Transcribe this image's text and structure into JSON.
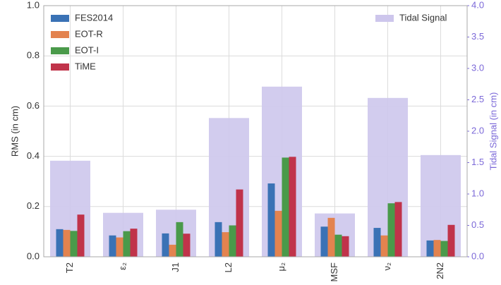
{
  "chart_data": {
    "type": "bar",
    "ylabel": "RMS (in cm)",
    "y2label": "Tidal Signal (in cm)",
    "categories": [
      "T2",
      "ε₂",
      "J1",
      "L2",
      "μ₂",
      "MSF",
      "ν₂",
      "2N2"
    ],
    "series": [
      {
        "name": "FES2014",
        "color": "#3a72b5",
        "values": [
          0.11,
          0.085,
          0.093,
          0.138,
          0.292,
          0.12,
          0.115,
          0.065
        ]
      },
      {
        "name": "EOT-R",
        "color": "#e3834f",
        "values": [
          0.107,
          0.077,
          0.048,
          0.098,
          0.183,
          0.155,
          0.085,
          0.067
        ]
      },
      {
        "name": "EOT-I",
        "color": "#4a9a4a",
        "values": [
          0.103,
          0.102,
          0.138,
          0.125,
          0.395,
          0.088,
          0.213,
          0.063
        ]
      },
      {
        "name": "TiME",
        "color": "#c0334a",
        "values": [
          0.168,
          0.112,
          0.092,
          0.268,
          0.398,
          0.082,
          0.218,
          0.127
        ]
      },
      {
        "name": "Tidal Signal",
        "color": "#cdc6ec",
        "axis": "y2",
        "values": [
          1.53,
          0.7,
          0.75,
          2.21,
          2.71,
          0.69,
          2.53,
          1.62
        ]
      }
    ],
    "ylim": [
      0,
      1.0
    ],
    "yticks": [
      {
        "value": 0,
        "label": "0.0"
      },
      0.2,
      0.4,
      0.6,
      0.8,
      {
        "value": 1.0,
        "label": "1.0"
      }
    ],
    "y2lim": [
      0,
      4.0
    ],
    "y2ticks": [
      {
        "value": 0,
        "label": "0.0"
      },
      0.5,
      {
        "value": 1.0,
        "label": "1.0"
      },
      1.5,
      {
        "value": 2.0,
        "label": "2.0"
      },
      2.5,
      {
        "value": 3.0,
        "label": "3.0"
      },
      3.5,
      {
        "value": 4.0,
        "label": "4.0"
      }
    ],
    "grid": true,
    "legend_loc": "upper left",
    "legend2_loc": "upper right"
  }
}
